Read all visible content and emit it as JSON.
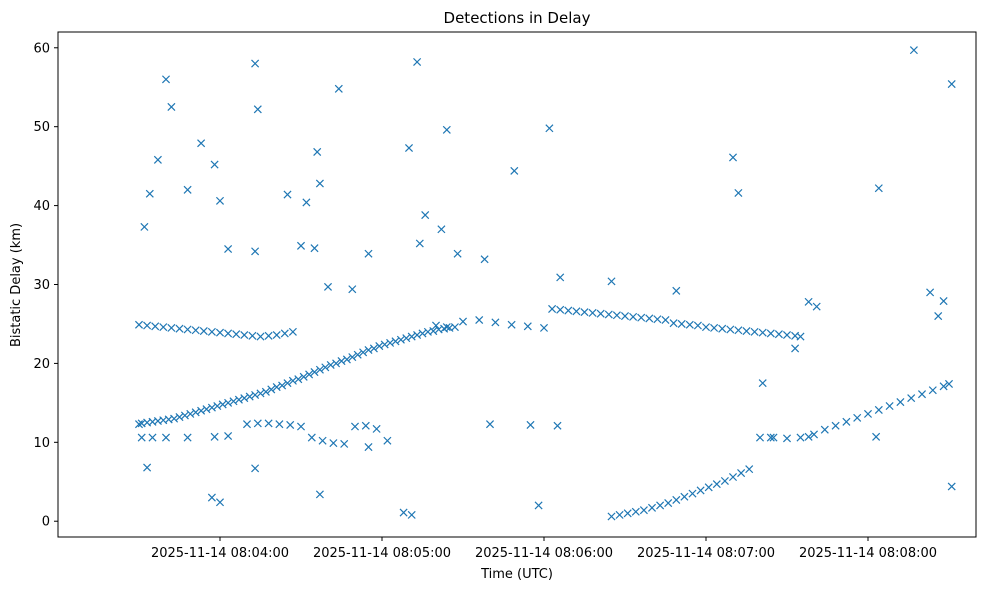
{
  "chart_data": {
    "type": "scatter",
    "title": "Detections in Delay",
    "xlabel": "Time (UTC)",
    "ylabel": "Bistatic Delay (km)",
    "marker": "x",
    "color": "#1f77b4",
    "grid": false,
    "legend": "none",
    "xlim": [
      "2025-11-14 08:03:00",
      "2025-11-14 08:08:40"
    ],
    "ylim": [
      -2,
      62
    ],
    "xticks": [
      "2025-11-14 08:04:00",
      "2025-11-14 08:05:00",
      "2025-11-14 08:06:00",
      "2025-11-14 08:07:00",
      "2025-11-14 08:08:00"
    ],
    "yticks": [
      0,
      10,
      20,
      30,
      40,
      50,
      60
    ],
    "series": [
      {
        "points": [
          [
            "2025-11-14 08:03:30",
            12.3
          ],
          [
            "2025-11-14 08:03:31",
            12.4
          ],
          [
            "2025-11-14 08:03:33",
            12.5
          ],
          [
            "2025-11-14 08:03:35",
            12.6
          ],
          [
            "2025-11-14 08:03:37",
            12.7
          ],
          [
            "2025-11-14 08:03:39",
            12.8
          ],
          [
            "2025-11-14 08:03:41",
            12.9
          ],
          [
            "2025-11-14 08:03:43",
            13.0
          ],
          [
            "2025-11-14 08:03:45",
            13.2
          ],
          [
            "2025-11-14 08:03:47",
            13.4
          ],
          [
            "2025-11-14 08:03:49",
            13.6
          ],
          [
            "2025-11-14 08:03:51",
            13.8
          ],
          [
            "2025-11-14 08:03:53",
            14.0
          ],
          [
            "2025-11-14 08:03:55",
            14.2
          ],
          [
            "2025-11-14 08:03:57",
            14.4
          ],
          [
            "2025-11-14 08:03:59",
            14.6
          ],
          [
            "2025-11-14 08:04:01",
            14.8
          ],
          [
            "2025-11-14 08:04:03",
            15.0
          ],
          [
            "2025-11-14 08:04:05",
            15.2
          ],
          [
            "2025-11-14 08:04:07",
            15.4
          ],
          [
            "2025-11-14 08:04:09",
            15.6
          ],
          [
            "2025-11-14 08:04:11",
            15.8
          ],
          [
            "2025-11-14 08:04:13",
            16.0
          ],
          [
            "2025-11-14 08:04:15",
            16.2
          ],
          [
            "2025-11-14 08:04:17",
            16.4
          ],
          [
            "2025-11-14 08:04:19",
            16.7
          ],
          [
            "2025-11-14 08:04:21",
            17.0
          ],
          [
            "2025-11-14 08:04:23",
            17.2
          ],
          [
            "2025-11-14 08:04:25",
            17.5
          ],
          [
            "2025-11-14 08:04:27",
            17.8
          ],
          [
            "2025-11-14 08:04:29",
            18.0
          ],
          [
            "2025-11-14 08:04:31",
            18.3
          ],
          [
            "2025-11-14 08:04:33",
            18.6
          ],
          [
            "2025-11-14 08:04:35",
            18.9
          ],
          [
            "2025-11-14 08:04:37",
            19.2
          ],
          [
            "2025-11-14 08:04:39",
            19.5
          ],
          [
            "2025-11-14 08:04:41",
            19.8
          ],
          [
            "2025-11-14 08:04:43",
            20.0
          ],
          [
            "2025-11-14 08:04:45",
            20.3
          ],
          [
            "2025-11-14 08:04:47",
            20.5
          ],
          [
            "2025-11-14 08:04:49",
            20.8
          ],
          [
            "2025-11-14 08:04:51",
            21.1
          ],
          [
            "2025-11-14 08:04:53",
            21.4
          ],
          [
            "2025-11-14 08:04:55",
            21.7
          ],
          [
            "2025-11-14 08:04:57",
            21.9
          ],
          [
            "2025-11-14 08:04:59",
            22.2
          ],
          [
            "2025-11-14 08:05:01",
            22.4
          ],
          [
            "2025-11-14 08:05:03",
            22.6
          ],
          [
            "2025-11-14 08:05:05",
            22.8
          ],
          [
            "2025-11-14 08:05:07",
            23.0
          ],
          [
            "2025-11-14 08:05:09",
            23.2
          ],
          [
            "2025-11-14 08:05:11",
            23.4
          ],
          [
            "2025-11-14 08:05:13",
            23.6
          ],
          [
            "2025-11-14 08:05:15",
            23.8
          ],
          [
            "2025-11-14 08:05:17",
            24.0
          ],
          [
            "2025-11-14 08:05:19",
            24.1
          ],
          [
            "2025-11-14 08:05:21",
            24.3
          ],
          [
            "2025-11-14 08:05:23",
            24.4
          ],
          [
            "2025-11-14 08:05:25",
            24.5
          ],
          [
            "2025-11-14 08:05:27",
            24.6
          ],
          [
            "2025-11-14 08:03:30",
            24.9
          ],
          [
            "2025-11-14 08:03:33",
            24.8
          ],
          [
            "2025-11-14 08:03:36",
            24.7
          ],
          [
            "2025-11-14 08:03:39",
            24.6
          ],
          [
            "2025-11-14 08:03:42",
            24.5
          ],
          [
            "2025-11-14 08:03:45",
            24.4
          ],
          [
            "2025-11-14 08:03:48",
            24.3
          ],
          [
            "2025-11-14 08:03:51",
            24.2
          ],
          [
            "2025-11-14 08:03:54",
            24.1
          ],
          [
            "2025-11-14 08:03:57",
            24.0
          ],
          [
            "2025-11-14 08:04:00",
            23.9
          ],
          [
            "2025-11-14 08:04:03",
            23.8
          ],
          [
            "2025-11-14 08:04:06",
            23.7
          ],
          [
            "2025-11-14 08:04:09",
            23.6
          ],
          [
            "2025-11-14 08:04:12",
            23.5
          ],
          [
            "2025-11-14 08:04:15",
            23.4
          ],
          [
            "2025-11-14 08:04:18",
            23.5
          ],
          [
            "2025-11-14 08:04:21",
            23.6
          ],
          [
            "2025-11-14 08:04:24",
            23.8
          ],
          [
            "2025-11-14 08:04:27",
            24.0
          ],
          [
            "2025-11-14 08:03:31",
            10.6
          ],
          [
            "2025-11-14 08:03:35",
            10.6
          ],
          [
            "2025-11-14 08:03:40",
            10.6
          ],
          [
            "2025-11-14 08:03:48",
            10.6
          ],
          [
            "2025-11-14 08:03:58",
            10.7
          ],
          [
            "2025-11-14 08:04:03",
            10.8
          ],
          [
            "2025-11-14 08:04:10",
            12.3
          ],
          [
            "2025-11-14 08:04:14",
            12.4
          ],
          [
            "2025-11-14 08:04:18",
            12.4
          ],
          [
            "2025-11-14 08:04:22",
            12.3
          ],
          [
            "2025-11-14 08:04:26",
            12.2
          ],
          [
            "2025-11-14 08:04:30",
            12.0
          ],
          [
            "2025-11-14 08:04:34",
            10.6
          ],
          [
            "2025-11-14 08:04:38",
            10.2
          ],
          [
            "2025-11-14 08:04:42",
            9.9
          ],
          [
            "2025-11-14 08:04:46",
            9.8
          ],
          [
            "2025-11-14 08:04:50",
            12.0
          ],
          [
            "2025-11-14 08:04:54",
            12.1
          ],
          [
            "2025-11-14 08:04:58",
            11.7
          ],
          [
            "2025-11-14 08:05:02",
            10.2
          ],
          [
            "2025-11-14 08:05:20",
            24.8
          ],
          [
            "2025-11-14 08:05:24",
            24.6
          ],
          [
            "2025-11-14 08:05:30",
            25.3
          ],
          [
            "2025-11-14 08:05:36",
            25.5
          ],
          [
            "2025-11-14 08:05:42",
            25.2
          ],
          [
            "2025-11-14 08:05:48",
            24.9
          ],
          [
            "2025-11-14 08:05:54",
            24.7
          ],
          [
            "2025-11-14 08:06:00",
            24.5
          ],
          [
            "2025-11-14 08:06:03",
            26.9
          ],
          [
            "2025-11-14 08:06:06",
            26.8
          ],
          [
            "2025-11-14 08:06:09",
            26.7
          ],
          [
            "2025-11-14 08:06:12",
            26.6
          ],
          [
            "2025-11-14 08:06:15",
            26.5
          ],
          [
            "2025-11-14 08:06:18",
            26.4
          ],
          [
            "2025-11-14 08:06:21",
            26.3
          ],
          [
            "2025-11-14 08:06:24",
            26.2
          ],
          [
            "2025-11-14 08:06:27",
            26.1
          ],
          [
            "2025-11-14 08:06:30",
            26.0
          ],
          [
            "2025-11-14 08:06:33",
            25.9
          ],
          [
            "2025-11-14 08:06:36",
            25.8
          ],
          [
            "2025-11-14 08:06:39",
            25.7
          ],
          [
            "2025-11-14 08:06:42",
            25.6
          ],
          [
            "2025-11-14 08:06:45",
            25.5
          ],
          [
            "2025-11-14 08:06:48",
            25.1
          ],
          [
            "2025-11-14 08:06:51",
            25.0
          ],
          [
            "2025-11-14 08:06:54",
            24.9
          ],
          [
            "2025-11-14 08:06:57",
            24.8
          ],
          [
            "2025-11-14 08:07:00",
            24.6
          ],
          [
            "2025-11-14 08:07:03",
            24.5
          ],
          [
            "2025-11-14 08:07:06",
            24.4
          ],
          [
            "2025-11-14 08:07:09",
            24.3
          ],
          [
            "2025-11-14 08:07:12",
            24.2
          ],
          [
            "2025-11-14 08:07:15",
            24.1
          ],
          [
            "2025-11-14 08:07:18",
            24.0
          ],
          [
            "2025-11-14 08:07:21",
            23.9
          ],
          [
            "2025-11-14 08:07:24",
            23.8
          ],
          [
            "2025-11-14 08:07:27",
            23.7
          ],
          [
            "2025-11-14 08:07:30",
            23.6
          ],
          [
            "2025-11-14 08:07:33",
            23.5
          ],
          [
            "2025-11-14 08:07:35",
            23.4
          ],
          [
            "2025-11-14 08:06:25",
            0.6
          ],
          [
            "2025-11-14 08:06:28",
            0.8
          ],
          [
            "2025-11-14 08:06:31",
            1.0
          ],
          [
            "2025-11-14 08:06:34",
            1.2
          ],
          [
            "2025-11-14 08:06:37",
            1.4
          ],
          [
            "2025-11-14 08:06:40",
            1.7
          ],
          [
            "2025-11-14 08:06:43",
            2.0
          ],
          [
            "2025-11-14 08:06:46",
            2.3
          ],
          [
            "2025-11-14 08:06:49",
            2.7
          ],
          [
            "2025-11-14 08:06:52",
            3.1
          ],
          [
            "2025-11-14 08:06:55",
            3.5
          ],
          [
            "2025-11-14 08:06:58",
            3.9
          ],
          [
            "2025-11-14 08:07:01",
            4.3
          ],
          [
            "2025-11-14 08:07:04",
            4.7
          ],
          [
            "2025-11-14 08:07:07",
            5.1
          ],
          [
            "2025-11-14 08:07:10",
            5.6
          ],
          [
            "2025-11-14 08:07:13",
            6.1
          ],
          [
            "2025-11-14 08:07:16",
            6.6
          ],
          [
            "2025-11-14 08:07:25",
            10.6
          ],
          [
            "2025-11-14 08:07:30",
            10.5
          ],
          [
            "2025-11-14 08:07:35",
            10.6
          ],
          [
            "2025-11-14 08:07:40",
            11.0
          ],
          [
            "2025-11-14 08:07:44",
            11.6
          ],
          [
            "2025-11-14 08:07:48",
            12.1
          ],
          [
            "2025-11-14 08:07:52",
            12.6
          ],
          [
            "2025-11-14 08:07:56",
            13.1
          ],
          [
            "2025-11-14 08:08:00",
            13.6
          ],
          [
            "2025-11-14 08:08:04",
            14.1
          ],
          [
            "2025-11-14 08:08:08",
            14.6
          ],
          [
            "2025-11-14 08:08:12",
            15.1
          ],
          [
            "2025-11-14 08:08:16",
            15.6
          ],
          [
            "2025-11-14 08:08:20",
            16.1
          ],
          [
            "2025-11-14 08:08:24",
            16.6
          ],
          [
            "2025-11-14 08:08:28",
            17.1
          ],
          [
            "2025-11-14 08:08:30",
            17.4
          ],
          [
            "2025-11-14 08:07:20",
            10.6
          ],
          [
            "2025-11-14 08:07:24",
            10.6
          ],
          [
            "2025-11-14 08:07:33",
            21.9
          ],
          [
            "2025-11-14 08:07:41",
            27.2
          ],
          [
            "2025-11-14 08:07:38",
            27.8
          ],
          [
            "2025-11-14 08:03:32",
            37.3
          ],
          [
            "2025-11-14 08:03:34",
            41.5
          ],
          [
            "2025-11-14 08:03:37",
            45.8
          ],
          [
            "2025-11-14 08:03:40",
            56.0
          ],
          [
            "2025-11-14 08:03:42",
            52.5
          ],
          [
            "2025-11-14 08:03:48",
            42.0
          ],
          [
            "2025-11-14 08:03:53",
            47.9
          ],
          [
            "2025-11-14 08:03:58",
            45.2
          ],
          [
            "2025-11-14 08:04:00",
            40.6
          ],
          [
            "2025-11-14 08:04:13",
            58.0
          ],
          [
            "2025-11-14 08:04:14",
            52.2
          ],
          [
            "2025-11-14 08:04:25",
            41.4
          ],
          [
            "2025-11-14 08:04:32",
            40.4
          ],
          [
            "2025-11-14 08:04:36",
            46.8
          ],
          [
            "2025-11-14 08:04:37",
            42.8
          ],
          [
            "2025-11-14 08:04:44",
            54.8
          ],
          [
            "2025-11-14 08:05:13",
            58.2
          ],
          [
            "2025-11-14 08:05:10",
            47.3
          ],
          [
            "2025-11-14 08:05:24",
            49.6
          ],
          [
            "2025-11-14 08:05:49",
            44.4
          ],
          [
            "2025-11-14 08:06:02",
            49.8
          ],
          [
            "2025-11-14 08:07:10",
            46.1
          ],
          [
            "2025-11-14 08:07:12",
            41.6
          ],
          [
            "2025-11-14 08:08:04",
            42.2
          ],
          [
            "2025-11-14 08:08:17",
            59.7
          ],
          [
            "2025-11-14 08:08:31",
            55.4
          ],
          [
            "2025-11-14 08:04:40",
            29.7
          ],
          [
            "2025-11-14 08:04:49",
            29.4
          ],
          [
            "2025-11-14 08:04:55",
            33.9
          ],
          [
            "2025-11-14 08:05:16",
            38.8
          ],
          [
            "2025-11-14 08:05:14",
            35.2
          ],
          [
            "2025-11-14 08:05:22",
            37.0
          ],
          [
            "2025-11-14 08:05:28",
            33.9
          ],
          [
            "2025-11-14 08:05:38",
            33.2
          ],
          [
            "2025-11-14 08:06:06",
            30.9
          ],
          [
            "2025-11-14 08:06:25",
            30.4
          ],
          [
            "2025-11-14 08:06:49",
            29.2
          ],
          [
            "2025-11-14 08:03:33",
            6.8
          ],
          [
            "2025-11-14 08:03:57",
            3.0
          ],
          [
            "2025-11-14 08:04:00",
            2.4
          ],
          [
            "2025-11-14 08:04:13",
            6.7
          ],
          [
            "2025-11-14 08:04:37",
            3.4
          ],
          [
            "2025-11-14 08:05:08",
            1.1
          ],
          [
            "2025-11-14 08:05:11",
            0.8
          ],
          [
            "2025-11-14 08:05:58",
            2.0
          ],
          [
            "2025-11-14 08:08:31",
            4.4
          ],
          [
            "2025-11-14 08:04:03",
            34.5
          ],
          [
            "2025-11-14 08:04:13",
            34.2
          ],
          [
            "2025-11-14 08:04:30",
            34.9
          ],
          [
            "2025-11-14 08:04:35",
            34.6
          ],
          [
            "2025-11-14 08:08:23",
            29.0
          ],
          [
            "2025-11-14 08:08:26",
            26.0
          ],
          [
            "2025-11-14 08:08:28",
            27.9
          ],
          [
            "2025-11-14 08:07:21",
            17.5
          ],
          [
            "2025-11-14 08:07:38",
            10.7
          ],
          [
            "2025-11-14 08:08:03",
            10.7
          ],
          [
            "2025-11-14 08:04:55",
            9.4
          ],
          [
            "2025-11-14 08:05:40",
            12.3
          ],
          [
            "2025-11-14 08:05:55",
            12.2
          ],
          [
            "2025-11-14 08:06:05",
            12.1
          ]
        ]
      }
    ]
  }
}
